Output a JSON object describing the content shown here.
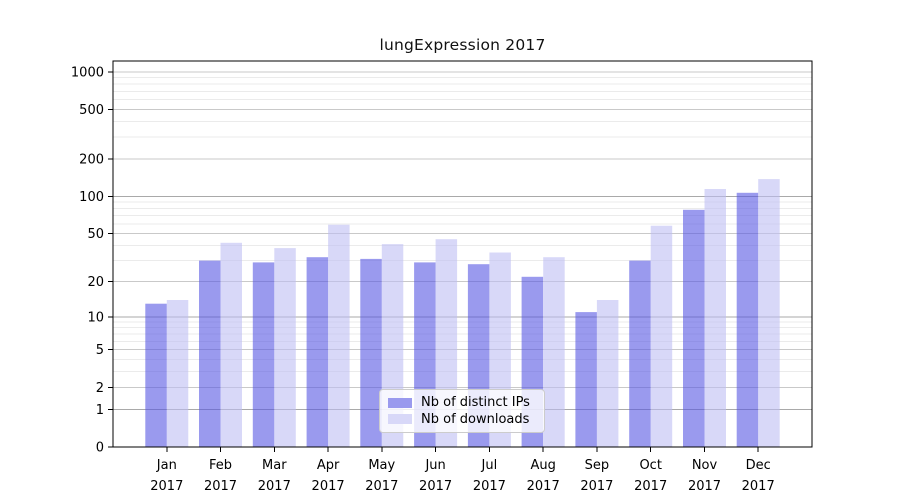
{
  "chart_data": {
    "type": "bar",
    "title": "lungExpression 2017",
    "categories": [
      "Jan",
      "Feb",
      "Mar",
      "Apr",
      "May",
      "Jun",
      "Jul",
      "Aug",
      "Sep",
      "Oct",
      "Nov",
      "Dec"
    ],
    "year": "2017",
    "series": [
      {
        "name": "Nb of distinct IPs",
        "color": "#9a9aee",
        "values": [
          13,
          30,
          29,
          32,
          31,
          29,
          28,
          22,
          11,
          30,
          78,
          107
        ]
      },
      {
        "name": "Nb of downloads",
        "color": "#d8d8f8",
        "values": [
          14,
          42,
          38,
          59,
          41,
          45,
          35,
          32,
          14,
          58,
          115,
          138
        ]
      }
    ],
    "xlabel": "",
    "ylabel": "",
    "y_scale": "log10(value+1)",
    "y_ticks": [
      0,
      1,
      2,
      5,
      10,
      20,
      50,
      100,
      200,
      500,
      1000
    ],
    "y_minor_ticks": [
      3,
      4,
      6,
      7,
      8,
      9,
      30,
      40,
      60,
      70,
      80,
      90,
      300,
      400,
      600,
      700,
      800,
      900
    ],
    "y_emphasized_gridlines": [
      1,
      10,
      100
    ],
    "ylim": [
      0,
      1224
    ],
    "xlim": [
      0,
      13
    ],
    "bar_width_data_units": 0.4,
    "bar_alpha": 0.6,
    "grid": true,
    "legend_position": "lower center",
    "colors": {
      "background": "#ffffff",
      "spine": "#000000",
      "text": "#000000",
      "grid_major": "#c9c9c9",
      "grid_emphasis": "#a9a9a9",
      "grid_minor": "#ebebeb"
    }
  }
}
